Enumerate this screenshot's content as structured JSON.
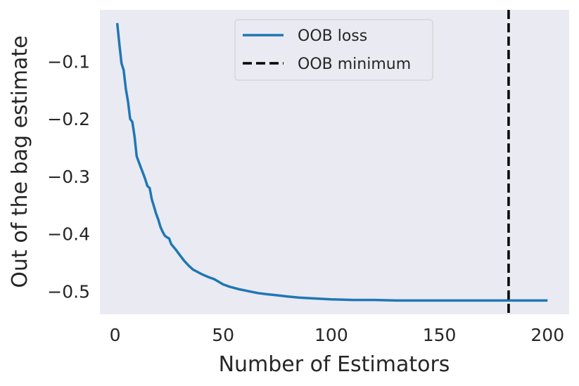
{
  "chart_data": {
    "type": "line",
    "xlabel": "Number of Estimators",
    "ylabel": "Out of the bag estimate",
    "xlim": [
      -7,
      210
    ],
    "ylim": [
      -0.54,
      -0.01
    ],
    "grid": false,
    "legend_placement": "top-center",
    "x_ticks": [
      0,
      50,
      100,
      150,
      200
    ],
    "x_tick_labels": [
      "0",
      "50",
      "100",
      "150",
      "200"
    ],
    "y_ticks": [
      -0.1,
      -0.2,
      -0.3,
      -0.4,
      -0.5
    ],
    "y_tick_labels": [
      "−0.1",
      "−0.2",
      "−0.3",
      "−0.4",
      "−0.5"
    ],
    "colors": {
      "background": "#eaeaf2",
      "line": "#1f77b4",
      "vline": "#000000"
    },
    "series": [
      {
        "name": "OOB loss",
        "x": [
          1,
          2,
          3,
          4,
          5,
          6,
          7,
          8,
          9,
          10,
          11,
          12,
          13,
          14,
          15,
          16,
          17,
          18,
          19,
          20,
          21,
          22,
          23,
          24,
          25,
          26,
          28,
          30,
          32,
          34,
          36,
          38,
          40,
          43,
          46,
          50,
          53,
          57,
          62,
          66,
          70,
          75,
          80,
          85,
          90,
          100,
          110,
          120,
          130,
          140,
          150,
          160,
          170,
          180,
          190,
          200
        ],
        "y": [
          -0.033,
          -0.07,
          -0.103,
          -0.115,
          -0.148,
          -0.17,
          -0.2,
          -0.205,
          -0.23,
          -0.265,
          -0.275,
          -0.285,
          -0.295,
          -0.305,
          -0.317,
          -0.32,
          -0.34,
          -0.352,
          -0.365,
          -0.375,
          -0.388,
          -0.396,
          -0.403,
          -0.406,
          -0.408,
          -0.418,
          -0.427,
          -0.437,
          -0.447,
          -0.455,
          -0.462,
          -0.466,
          -0.47,
          -0.475,
          -0.479,
          -0.488,
          -0.492,
          -0.496,
          -0.5,
          -0.503,
          -0.505,
          -0.507,
          -0.509,
          -0.511,
          -0.512,
          -0.514,
          -0.515,
          -0.515,
          -0.516,
          -0.516,
          -0.516,
          -0.516,
          -0.516,
          -0.516,
          -0.516,
          -0.516
        ]
      },
      {
        "name": "OOB minimum",
        "x_value": 182
      }
    ]
  }
}
